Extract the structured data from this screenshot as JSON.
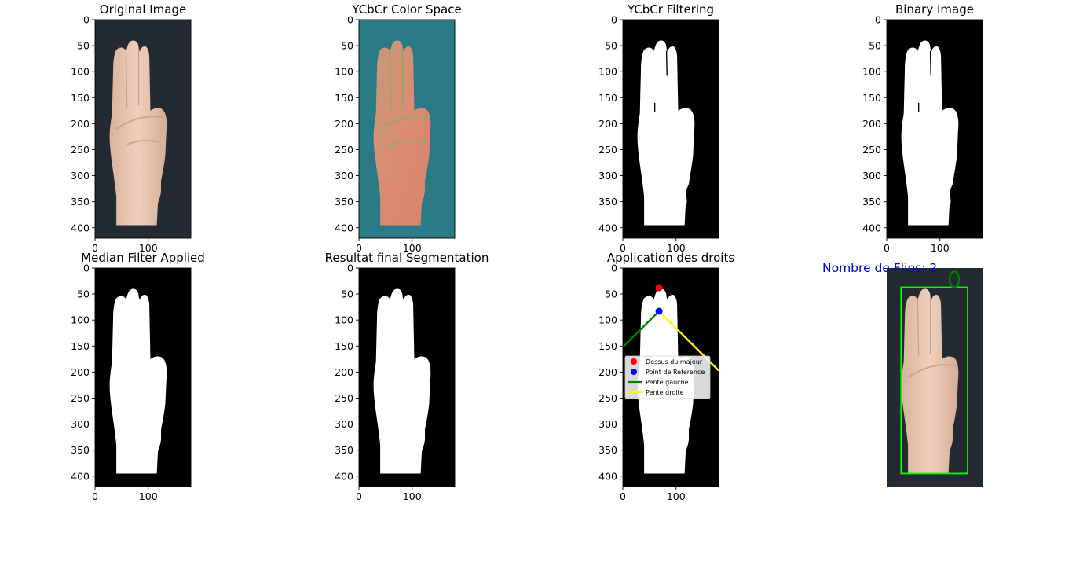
{
  "panels": [
    {
      "id": "original",
      "title": "Original Image",
      "kind": "photo"
    },
    {
      "id": "ycbcr",
      "title": "YCbCr Color Space",
      "kind": "ycbcr"
    },
    {
      "id": "filtering",
      "title": "YCbCr Filtering",
      "kind": "mask-rough"
    },
    {
      "id": "binary",
      "title": "Binary Image",
      "kind": "mask-rough"
    },
    {
      "id": "median",
      "title": "Median Filter Applied",
      "kind": "mask-smooth"
    },
    {
      "id": "final",
      "title": "Resultat final Segmentation",
      "kind": "mask-smooth"
    },
    {
      "id": "droits",
      "title": "Application des droits",
      "kind": "mask-smooth-annotated"
    },
    {
      "id": "result",
      "title": "",
      "kind": "photo-boxed"
    }
  ],
  "axes": {
    "y_ticks": [
      0,
      50,
      100,
      150,
      200,
      250,
      300,
      350,
      400
    ],
    "x_ticks": [
      0,
      100
    ],
    "image_width": 180,
    "image_height": 420
  },
  "chart_data": {
    "type": "line",
    "title": "Application des droits",
    "xlabel": "",
    "ylabel": "",
    "xlim": [
      0,
      180
    ],
    "ylim": [
      420,
      0
    ],
    "points": [
      {
        "name": "Dessus du majeur",
        "x": 68,
        "y": 38,
        "color": "#ff0000"
      },
      {
        "name": "Point de Reference",
        "x": 68,
        "y": 83,
        "color": "#0000ff"
      }
    ],
    "series": [
      {
        "name": "Pente gauche",
        "color": "#008000",
        "x": [
          0,
          68
        ],
        "y": [
          152,
          83
        ]
      },
      {
        "name": "Pente droite",
        "color": "#ffff00",
        "x": [
          68,
          180
        ],
        "y": [
          83,
          197
        ]
      }
    ],
    "legend_position": "center-left"
  },
  "result": {
    "flips_label": "Nombre de  Flips: 2",
    "box_color": "#00ff00",
    "circle_color": "#008000",
    "box_x": [
      27,
      152
    ],
    "box_y": [
      37,
      395
    ],
    "circle": {
      "cx": 127,
      "cy": 22,
      "r": 13
    }
  },
  "colors": {
    "photo_bg": "#232a31",
    "ycbcr_bg": "#2a7b85",
    "skin": "#e6c2ad",
    "skin_ycbcr": "#d9896f",
    "mask_bg": "#000000",
    "mask_fg": "#ffffff"
  }
}
